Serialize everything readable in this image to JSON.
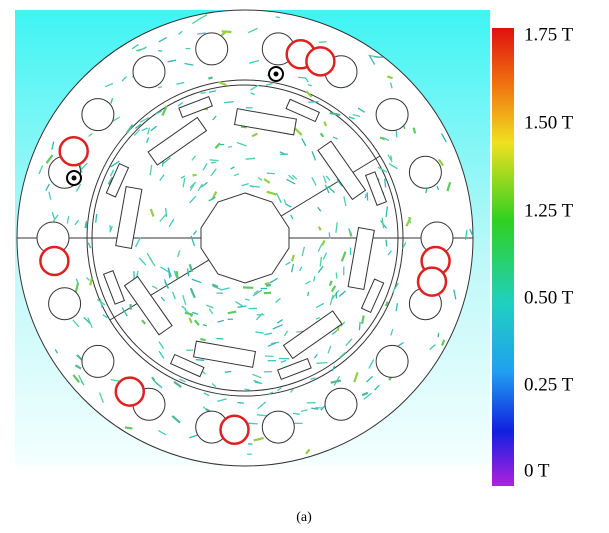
{
  "colorbar": {
    "labels": [
      "1.75 T",
      "1.50 T",
      "1.25 T",
      "0.50 T",
      "0.25 T",
      "0 T"
    ]
  },
  "caption": "(a)"
}
